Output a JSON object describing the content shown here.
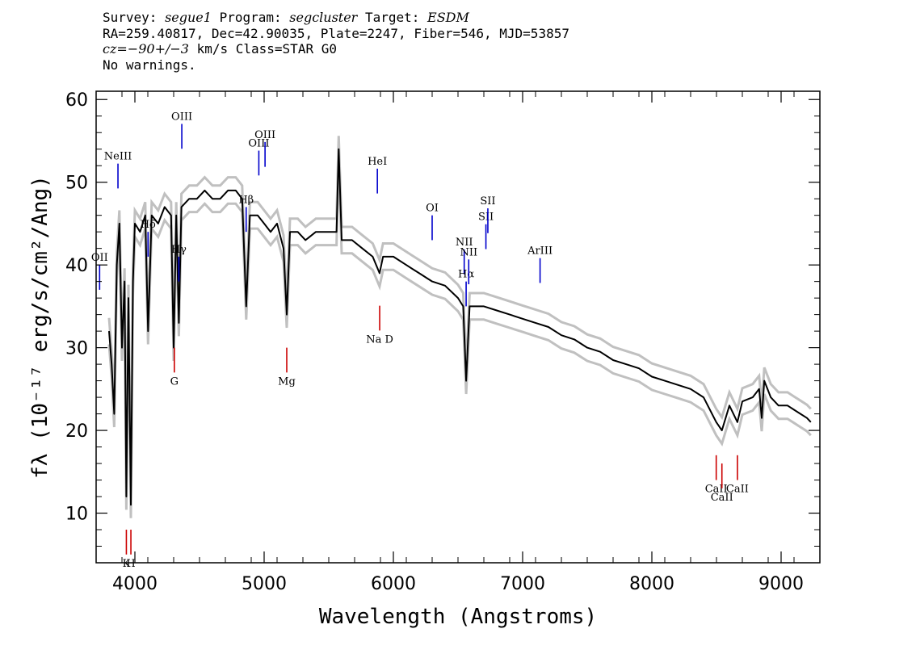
{
  "header": {
    "line1": {
      "survey_label": "Survey: ",
      "survey": "segue1",
      "program_label": " Program: ",
      "program": "segcluster",
      "target_label": " Target: ",
      "target": "ESDM"
    },
    "line2": "RA=259.40817, Dec=42.90035, Plate=2247, Fiber=546, MJD=53857",
    "line3": {
      "cz_label": "cz",
      "cz_value": "=−90+/−3",
      "unit": " km/s Class=STAR G0"
    },
    "line4": "No warnings."
  },
  "chart_data": {
    "type": "line",
    "xlabel": "Wavelength (Angstroms)",
    "ylabel": "fλ (10⁻¹⁷ erg/s/cm²/Ang)",
    "xlim": [
      3700,
      9300
    ],
    "ylim": [
      4,
      61
    ],
    "x_ticks": [
      4000,
      5000,
      6000,
      7000,
      8000,
      9000
    ],
    "y_ticks": [
      10,
      20,
      30,
      40,
      50,
      60
    ],
    "grid": false,
    "colors": {
      "flux": "#000000",
      "noise": "#c0c0c0",
      "emission": "#0000cc",
      "absorption": "#cc0000"
    },
    "series": [
      {
        "name": "flux",
        "x": [
          3800,
          3820,
          3840,
          3860,
          3880,
          3900,
          3920,
          3934,
          3950,
          3969,
          3985,
          4000,
          4040,
          4080,
          4102,
          4130,
          4180,
          4230,
          4280,
          4300,
          4320,
          4340,
          4360,
          4420,
          4480,
          4540,
          4600,
          4660,
          4720,
          4780,
          4830,
          4861,
          4890,
          4950,
          5000,
          5050,
          5100,
          5150,
          5175,
          5200,
          5260,
          5320,
          5400,
          5480,
          5560,
          5577,
          5600,
          5680,
          5760,
          5840,
          5893,
          5920,
          6000,
          6100,
          6200,
          6300,
          6400,
          6500,
          6540,
          6563,
          6590,
          6700,
          6800,
          6900,
          7000,
          7100,
          7200,
          7300,
          7400,
          7500,
          7600,
          7700,
          7800,
          7900,
          8000,
          8100,
          8200,
          8300,
          8400,
          8498,
          8542,
          8600,
          8662,
          8700,
          8780,
          8830,
          8850,
          8870,
          8920,
          8980,
          9050,
          9100,
          9150,
          9200,
          9230
        ],
        "values": [
          32,
          28,
          22,
          40,
          45,
          30,
          38,
          12,
          36,
          11,
          38,
          45,
          44,
          46,
          32,
          46,
          45,
          47,
          46,
          30,
          46,
          33,
          47,
          48,
          48,
          49,
          48,
          48,
          49,
          49,
          48,
          35,
          46,
          46,
          45,
          44,
          45,
          42,
          34,
          44,
          44,
          43,
          44,
          44,
          44,
          54,
          43,
          43,
          42,
          41,
          39,
          41,
          41,
          40,
          39,
          38,
          37.5,
          36,
          35,
          26,
          35,
          35,
          34.5,
          34,
          33.5,
          33,
          32.5,
          31.5,
          31,
          30,
          29.5,
          28.5,
          28,
          27.5,
          26.5,
          26,
          25.5,
          25,
          24,
          21,
          20,
          23,
          21,
          23.5,
          24,
          25,
          21.5,
          26,
          24,
          23,
          23,
          22.5,
          22,
          21.5,
          21
        ]
      }
    ],
    "emission_lines": [
      {
        "label": "OII",
        "wavelength": 3727
      },
      {
        "label": "NeIII",
        "wavelength": 3869
      },
      {
        "label": "Hδ",
        "wavelength": 4102
      },
      {
        "label": "Hγ",
        "wavelength": 4340
      },
      {
        "label": "OIII",
        "wavelength": 4363
      },
      {
        "label": "Hβ",
        "wavelength": 4861
      },
      {
        "label": "OIII",
        "wavelength": 4959
      },
      {
        "label": "OIII",
        "wavelength": 5007
      },
      {
        "label": "HeI",
        "wavelength": 5876
      },
      {
        "label": "OI",
        "wavelength": 6300
      },
      {
        "label": "NII",
        "wavelength": 6548
      },
      {
        "label": "Hα",
        "wavelength": 6563
      },
      {
        "label": "NII",
        "wavelength": 6583
      },
      {
        "label": "SII",
        "wavelength": 6716
      },
      {
        "label": "SII",
        "wavelength": 6731
      },
      {
        "label": "ArIII",
        "wavelength": 7135
      }
    ],
    "absorption_lines": [
      {
        "label": "K",
        "wavelength": 3934
      },
      {
        "label": "H",
        "wavelength": 3969
      },
      {
        "label": "G",
        "wavelength": 4305
      },
      {
        "label": "Mg",
        "wavelength": 5175
      },
      {
        "label": "Na D",
        "wavelength": 5894
      },
      {
        "label": "CaII",
        "wavelength": 8498
      },
      {
        "label": "CaII",
        "wavelength": 8542
      },
      {
        "label": "CaII",
        "wavelength": 8662
      }
    ]
  }
}
